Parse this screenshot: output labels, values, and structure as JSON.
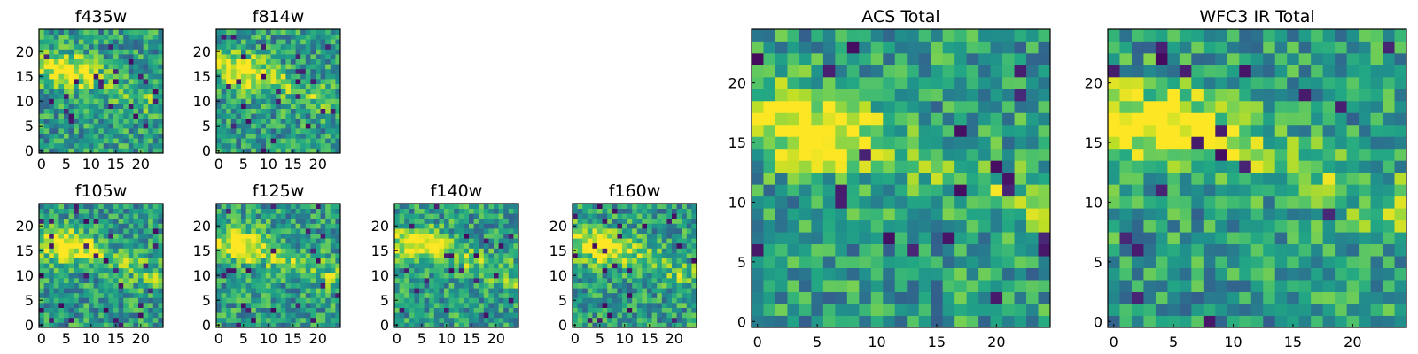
{
  "figure": {
    "description_colormap": "viridis",
    "colors": {
      "low": "#440154",
      "mid": "#21918c",
      "high": "#fde725"
    }
  },
  "chart_data": [
    {
      "type": "heatmap",
      "title": "f435w",
      "size": 25,
      "xticks": [
        "0",
        "5",
        "10",
        "15",
        "20"
      ],
      "yticks": [
        "0",
        "5",
        "10",
        "15",
        "20"
      ],
      "xlim": [
        0,
        25
      ],
      "ylim": [
        0,
        25
      ]
    },
    {
      "type": "heatmap",
      "title": "f814w",
      "size": 25,
      "xticks": [
        "0",
        "5",
        "10",
        "15",
        "20"
      ],
      "yticks": [
        "0",
        "5",
        "10",
        "15",
        "20"
      ],
      "xlim": [
        0,
        25
      ],
      "ylim": [
        0,
        25
      ]
    },
    {
      "type": "heatmap",
      "title": "f105w",
      "size": 25,
      "xticks": [
        "0",
        "5",
        "10",
        "15",
        "20"
      ],
      "yticks": [
        "0",
        "5",
        "10",
        "15",
        "20"
      ],
      "xlim": [
        0,
        25
      ],
      "ylim": [
        0,
        25
      ]
    },
    {
      "type": "heatmap",
      "title": "f125w",
      "size": 25,
      "xticks": [
        "0",
        "5",
        "10",
        "15",
        "20"
      ],
      "yticks": [
        "0",
        "5",
        "10",
        "15",
        "20"
      ],
      "xlim": [
        0,
        25
      ],
      "ylim": [
        0,
        25
      ]
    },
    {
      "type": "heatmap",
      "title": "f140w",
      "size": 25,
      "xticks": [
        "0",
        "5",
        "10",
        "15",
        "20"
      ],
      "yticks": [
        "0",
        "5",
        "10",
        "15",
        "20"
      ],
      "xlim": [
        0,
        25
      ],
      "ylim": [
        0,
        25
      ]
    },
    {
      "type": "heatmap",
      "title": "f160w",
      "size": 25,
      "xticks": [
        "0",
        "5",
        "10",
        "15",
        "20"
      ],
      "yticks": [
        "0",
        "5",
        "10",
        "15",
        "20"
      ],
      "xlim": [
        0,
        25
      ],
      "ylim": [
        0,
        25
      ]
    },
    {
      "type": "heatmap",
      "title": "ACS Total",
      "size": 25,
      "xticks": [
        "0",
        "5",
        "10",
        "15",
        "20"
      ],
      "yticks": [
        "0",
        "5",
        "10",
        "15",
        "20"
      ],
      "xlim": [
        0,
        25
      ],
      "ylim": [
        0,
        25
      ]
    },
    {
      "type": "heatmap",
      "title": "WFC3 IR Total",
      "size": 25,
      "xticks": [
        "0",
        "5",
        "10",
        "15",
        "20"
      ],
      "yticks": [
        "0",
        "5",
        "10",
        "15",
        "20"
      ],
      "xlim": [
        0,
        25
      ],
      "ylim": [
        0,
        25
      ]
    }
  ]
}
